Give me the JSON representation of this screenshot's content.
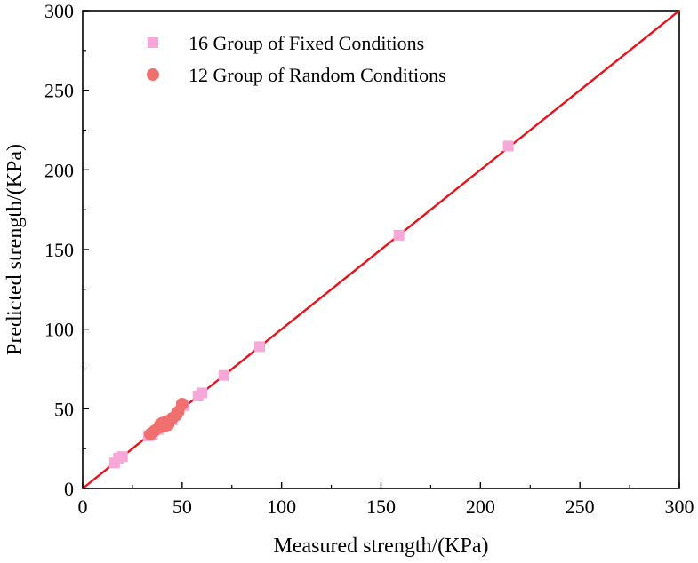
{
  "chart_data": {
    "type": "scatter",
    "title": "",
    "xlabel": "Measured strength/(KPa)",
    "ylabel": "Predicted strength/(KPa)",
    "xlim": [
      0,
      300
    ],
    "ylim": [
      0,
      300
    ],
    "x_ticks": [
      "0",
      "50",
      "100",
      "150",
      "200",
      "250",
      "300"
    ],
    "y_ticks": [
      "0",
      "50",
      "100",
      "150",
      "200",
      "250",
      "300"
    ],
    "grid": false,
    "legend_position": "top-left",
    "series": [
      {
        "name": "16 Group of Fixed  Conditions",
        "marker": "square",
        "color": "#f7a8d8",
        "points": [
          [
            16,
            16
          ],
          [
            18,
            19
          ],
          [
            20,
            20
          ],
          [
            33,
            33
          ],
          [
            35,
            34
          ],
          [
            38,
            37
          ],
          [
            42,
            41
          ],
          [
            45,
            43
          ],
          [
            51,
            52
          ],
          [
            58,
            58
          ],
          [
            60,
            60
          ],
          [
            71,
            71
          ],
          [
            89,
            89
          ],
          [
            159,
            159
          ],
          [
            214,
            215
          ],
          [
            40,
            39
          ]
        ]
      },
      {
        "name": "12 Group of Random Conditions",
        "marker": "circle",
        "color": "#f07070",
        "points": [
          [
            34,
            34
          ],
          [
            36,
            36
          ],
          [
            38,
            38
          ],
          [
            39,
            40
          ],
          [
            40,
            41
          ],
          [
            41,
            39
          ],
          [
            42,
            42
          ],
          [
            43,
            40
          ],
          [
            45,
            44
          ],
          [
            47,
            46
          ],
          [
            48,
            48
          ],
          [
            50,
            53
          ]
        ]
      }
    ],
    "reference_line": {
      "from": [
        0,
        0
      ],
      "to": [
        300,
        300
      ],
      "color": "#e8121a"
    }
  }
}
